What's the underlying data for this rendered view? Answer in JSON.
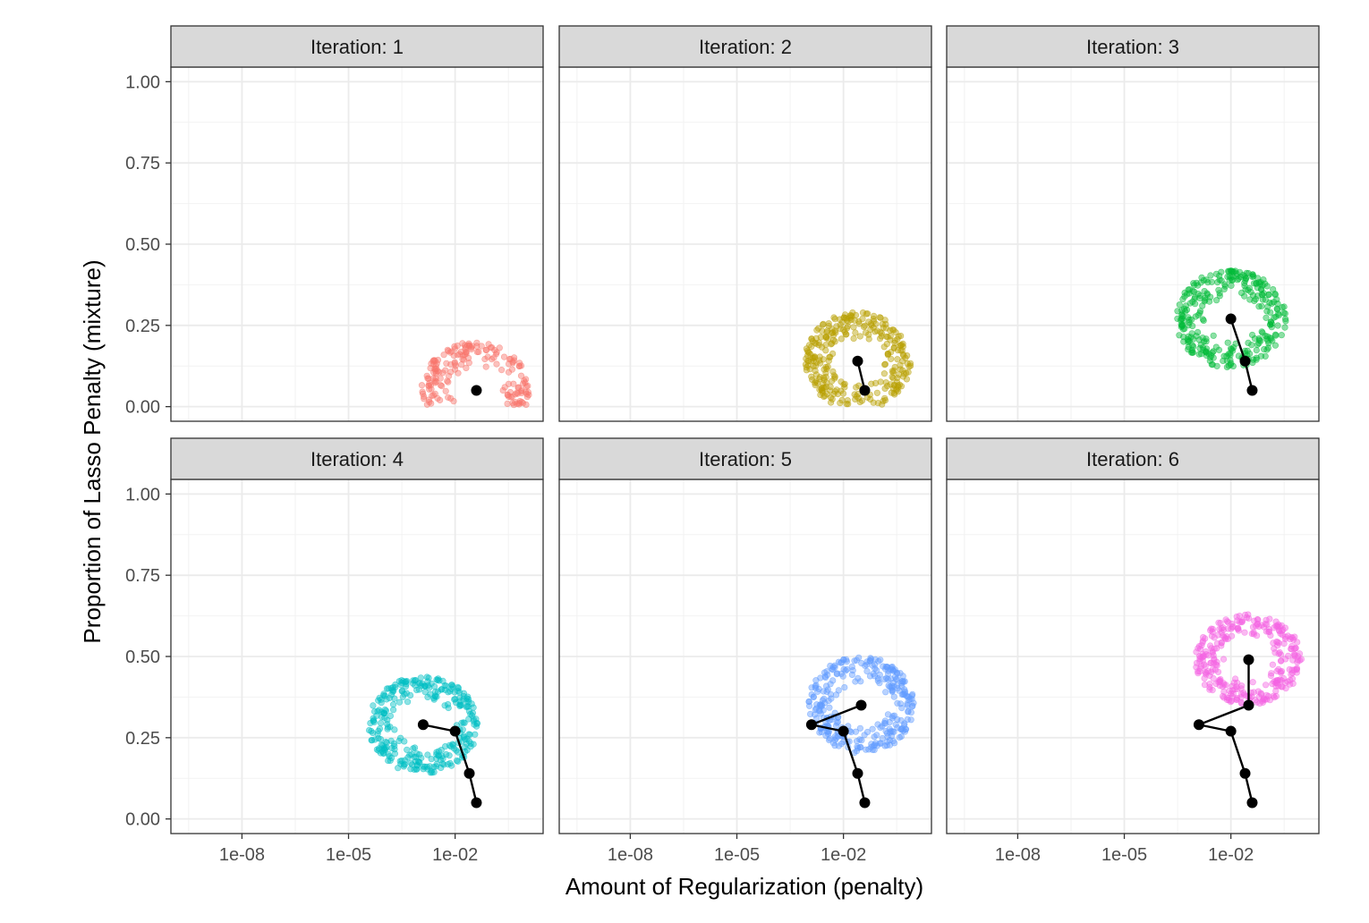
{
  "chart_data": {
    "type": "scatter",
    "xlabel": "Amount of Regularization (penalty)",
    "ylabel": "Proportion of Lasso Penalty (mixture)",
    "x_scale": "log10",
    "xlim": [
      1e-10,
      3
    ],
    "ylim": [
      -0.045,
      1.045
    ],
    "x_ticks": [
      1e-08,
      1e-05,
      0.01
    ],
    "x_tick_labels": [
      "1e-08",
      "1e-05",
      "1e-02"
    ],
    "y_ticks": [
      0.0,
      0.25,
      0.5,
      0.75,
      1.0
    ],
    "y_tick_labels": [
      "0.00",
      "0.25",
      "0.50",
      "0.75",
      "1.00"
    ],
    "grid": true,
    "layout": "facet 2x3",
    "point_count_per_panel": 300,
    "path": [
      {
        "penalty": 0.0398,
        "mixture": 0.05
      },
      {
        "penalty": 0.0251,
        "mixture": 0.14
      },
      {
        "penalty": 0.01,
        "mixture": 0.27
      },
      {
        "penalty": 0.00126,
        "mixture": 0.29
      },
      {
        "penalty": 0.0316,
        "mixture": 0.35
      },
      {
        "penalty": 0.0316,
        "mixture": 0.49
      }
    ],
    "panels": [
      {
        "label": "Iteration: 1",
        "color": "#F8766D",
        "candidates": {
          "center_penalty": 0.0398,
          "center_mixture": 0.05,
          "log_radius": 1.55,
          "mixture_radius": 0.15
        }
      },
      {
        "label": "Iteration: 2",
        "color": "#B79F00",
        "candidates": {
          "center_penalty": 0.0251,
          "center_mixture": 0.14,
          "log_radius": 1.5,
          "mixture_radius": 0.15
        }
      },
      {
        "label": "Iteration: 3",
        "color": "#00BA38",
        "candidates": {
          "center_penalty": 0.01,
          "center_mixture": 0.27,
          "log_radius": 1.55,
          "mixture_radius": 0.15
        }
      },
      {
        "label": "Iteration: 4",
        "color": "#00BFC4",
        "candidates": {
          "center_penalty": 0.00126,
          "center_mixture": 0.29,
          "log_radius": 1.55,
          "mixture_radius": 0.15
        }
      },
      {
        "label": "Iteration: 5",
        "color": "#619CFF",
        "candidates": {
          "center_penalty": 0.0316,
          "center_mixture": 0.35,
          "log_radius": 1.5,
          "mixture_radius": 0.15
        }
      },
      {
        "label": "Iteration: 6",
        "color": "#F564E3",
        "candidates": {
          "center_penalty": 0.0316,
          "center_mixture": 0.49,
          "log_radius": 1.5,
          "mixture_radius": 0.14
        }
      }
    ]
  }
}
